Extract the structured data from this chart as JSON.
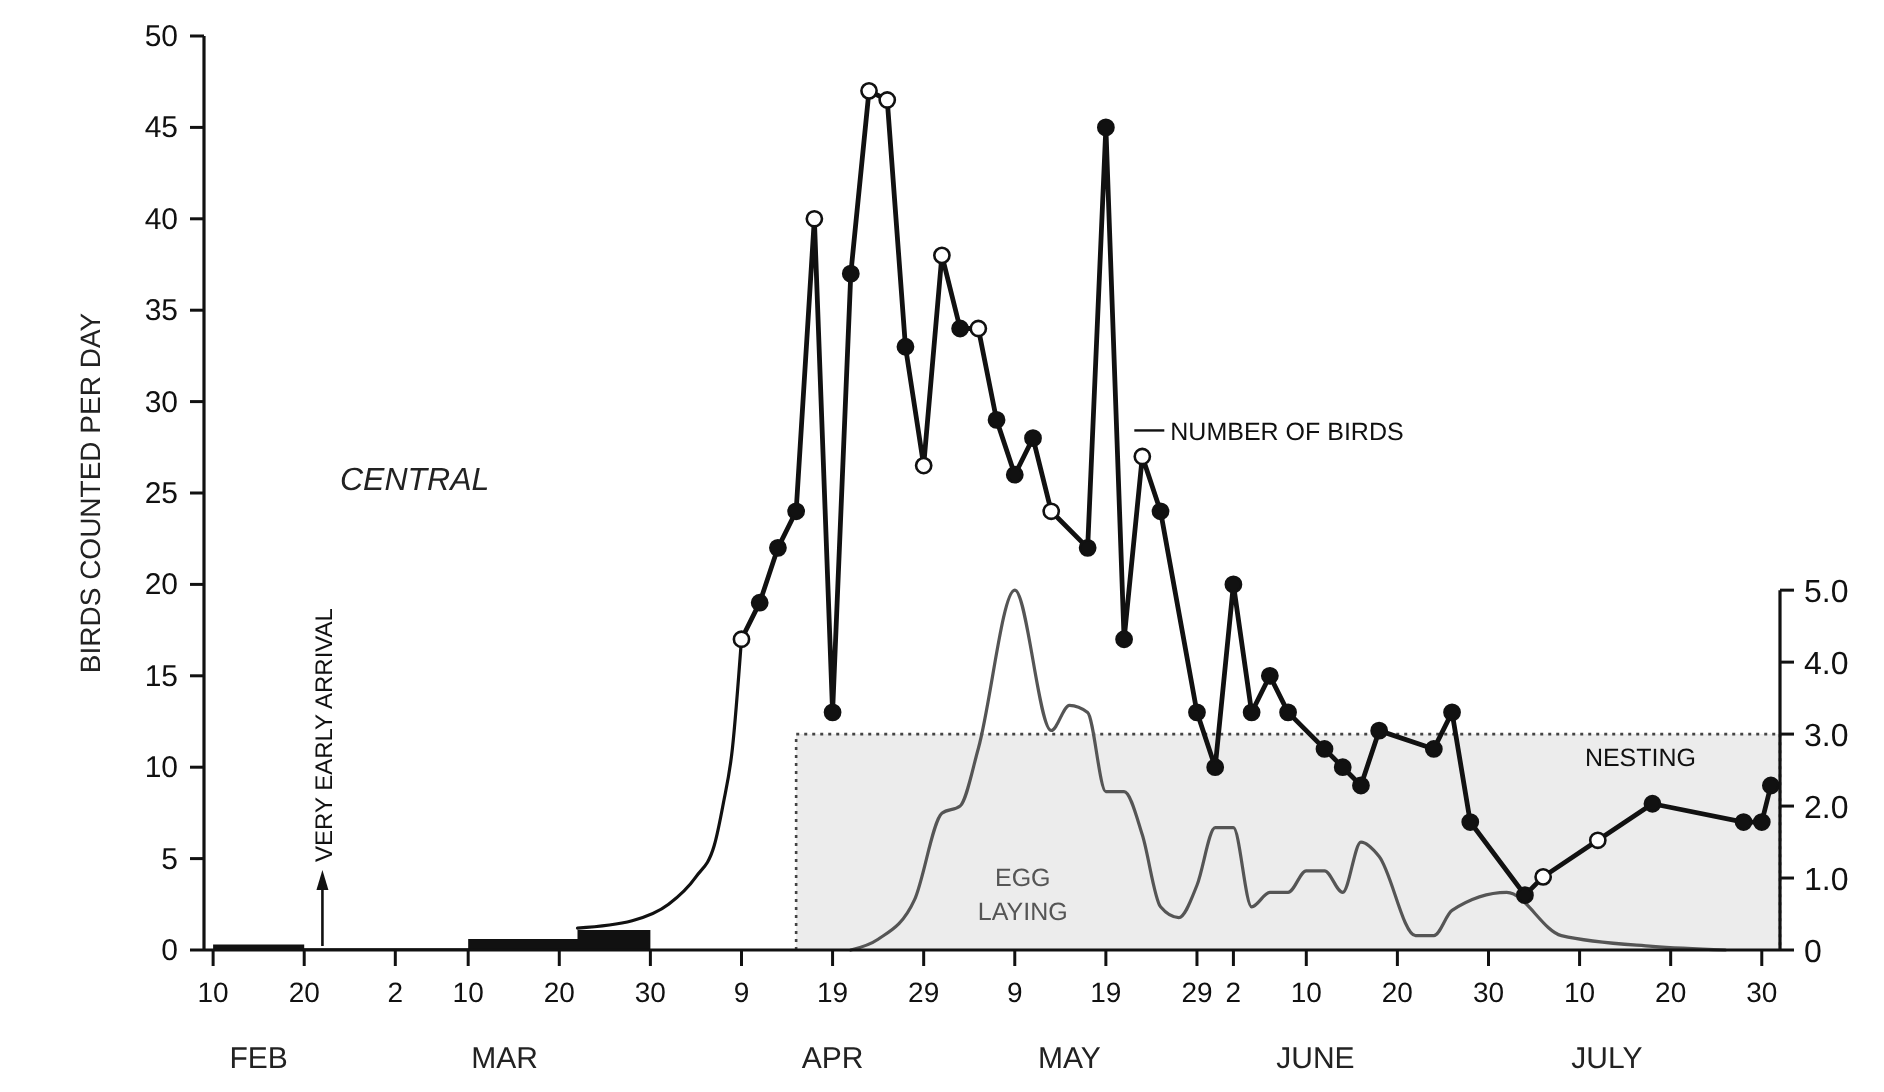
{
  "chart_data": {
    "type": "line",
    "ylabel": "BIRDS COUNTED PER DAY",
    "xlim": [
      "--02-09",
      "--08-01"
    ],
    "xticks": [
      {
        "value": "--02-10",
        "label": "10"
      },
      {
        "value": "--02-20",
        "label": "20"
      },
      {
        "value": "--03-02",
        "label": "2"
      },
      {
        "value": "--03-10",
        "label": "10"
      },
      {
        "value": "--03-20",
        "label": "20"
      },
      {
        "value": "--03-30",
        "label": "30"
      },
      {
        "value": "--04-09",
        "label": "9"
      },
      {
        "value": "--04-19",
        "label": "19"
      },
      {
        "value": "--04-29",
        "label": "29"
      },
      {
        "value": "--05-09",
        "label": "9"
      },
      {
        "value": "--05-19",
        "label": "19"
      },
      {
        "value": "--05-29",
        "label": "29"
      },
      {
        "value": "--06-02",
        "label": "2"
      },
      {
        "value": "--06-10",
        "label": "10"
      },
      {
        "value": "--06-20",
        "label": "20"
      },
      {
        "value": "--06-30",
        "label": "30"
      },
      {
        "value": "--07-10",
        "label": "10"
      },
      {
        "value": "--07-20",
        "label": "20"
      },
      {
        "value": "--07-30",
        "label": "30"
      }
    ],
    "ylim": [
      0,
      50
    ],
    "yticks": [
      0,
      5,
      10,
      15,
      20,
      25,
      30,
      35,
      40,
      45,
      50
    ],
    "y2lim": [
      0,
      12.7
    ],
    "y2ticks": [
      0,
      {
        "value": 1,
        "label": "1.0"
      },
      {
        "value": 2,
        "label": "2.0"
      },
      {
        "value": 3,
        "label": "3.0"
      },
      {
        "value": 4,
        "label": "4.0"
      },
      {
        "value": 5,
        "label": "5.0"
      }
    ],
    "grid": false,
    "legend": "top",
    "series": [
      {
        "type": "area",
        "axis": "y2",
        "name": "NESTING",
        "color": "#ececec",
        "line_style": "dotted",
        "x": [
          "--04-15",
          "--08-01"
        ],
        "values": [
          3,
          3
        ]
      },
      {
        "type": "line",
        "axis": "y2",
        "name": "EGG LAYING",
        "color": "#555555",
        "x": [
          "--04-21",
          "--04-24",
          "--04-28",
          "--05-01",
          "--05-03",
          "--05-05",
          "--05-09",
          "--05-13",
          "--05-15",
          "--05-17",
          "--05-19",
          "--05-21",
          "--05-23",
          "--05-25",
          "--05-27",
          "--05-29",
          "--05-31",
          "--06-02",
          "--06-04",
          "--06-06",
          "--06-08",
          "--06-10",
          "--06-12",
          "--06-14",
          "--06-16",
          "--06-18",
          "--06-22",
          "--06-24",
          "--06-26",
          "--07-02",
          "--07-08",
          "--07-18",
          "--07-26"
        ],
        "values": [
          0,
          0.15,
          0.7,
          1.9,
          2.0,
          2.8,
          5.0,
          3.05,
          3.4,
          3.3,
          2.2,
          2.2,
          1.6,
          0.6,
          0.45,
          0.9,
          1.7,
          1.7,
          0.6,
          0.8,
          0.8,
          1.1,
          1.1,
          0.8,
          1.5,
          1.3,
          0.2,
          0.2,
          0.55,
          0.8,
          0.2,
          0.05,
          0
        ]
      },
      {
        "type": "area",
        "color": "#111111",
        "x": [
          "--02-10",
          "--02-20",
          "--02-20",
          "--03-10",
          "--03-10",
          "--03-22",
          "--03-22",
          "--03-30",
          "--03-30"
        ],
        "values": [
          0.3,
          0.3,
          0.1,
          0.1,
          0.6,
          0.6,
          1.1,
          1.1,
          0
        ]
      },
      {
        "color": "#111111",
        "x": [
          "--03-22",
          "--03-28",
          "--04-01",
          "--04-04",
          "--04-06",
          "--04-07",
          "--04-08",
          "--04-09"
        ],
        "values": [
          1.2,
          1.6,
          2.5,
          4,
          5.7,
          8,
          11,
          17
        ]
      },
      {
        "name": "NUMBER OF BIRDS",
        "color": "#111111",
        "marker": "circle",
        "x": [
          "--04-09",
          "--04-11",
          "--04-13",
          "--04-15",
          "--04-17",
          "--04-19",
          "--04-21",
          "--04-23",
          "--04-25",
          "--04-27",
          "--04-29",
          "--05-01",
          "--05-03",
          "--05-05",
          "--05-07",
          "--05-09",
          "--05-11",
          "--05-13",
          "--05-17",
          "--05-19",
          "--05-21",
          "--05-23",
          "--05-25",
          "--05-29",
          "--05-31",
          "--06-02",
          "--06-04",
          "--06-06",
          "--06-08",
          "--06-12",
          "--06-14",
          "--06-16",
          "--06-18",
          "--06-24",
          "--06-26",
          "--06-28",
          "--07-04",
          "--07-06",
          "--07-12",
          "--07-18",
          "--07-28",
          "--07-30",
          "--07-31"
        ],
        "values": [
          17,
          19,
          22,
          24,
          40,
          13,
          37,
          47,
          46.5,
          33,
          26.5,
          38,
          34,
          34,
          29,
          26,
          28,
          24,
          22,
          45,
          17,
          27,
          24,
          13,
          10,
          20,
          13,
          15,
          13,
          11,
          10,
          9,
          12,
          11,
          13,
          7,
          3,
          4,
          6,
          8,
          7,
          7,
          9
        ],
        "colors": [
          "#ffffff",
          "#111111",
          "#111111",
          "#111111",
          "#ffffff",
          "#111111",
          "#111111",
          "#ffffff",
          "#ffffff",
          "#111111",
          "#ffffff",
          "#ffffff",
          "#111111",
          "#ffffff",
          "#111111",
          "#111111",
          "#111111",
          "#ffffff",
          "#111111",
          "#111111",
          "#111111",
          "#ffffff",
          "#111111",
          "#111111",
          "#111111",
          "#111111",
          "#111111",
          "#111111",
          "#111111",
          "#111111",
          "#111111",
          "#111111",
          "#111111",
          "#111111",
          "#111111",
          "#111111",
          "#111111",
          "#ffffff",
          "#ffffff",
          "#111111",
          "#111111",
          "#111111",
          "#111111"
        ]
      }
    ],
    "annotations": [
      "CENTRAL",
      {
        "text": "VERY EARLY ARRIVAL",
        "x": "--02-22",
        "y": 0
      },
      "FEB",
      "MAR",
      "APR",
      "MAY",
      "JUNE",
      "JULY"
    ]
  }
}
